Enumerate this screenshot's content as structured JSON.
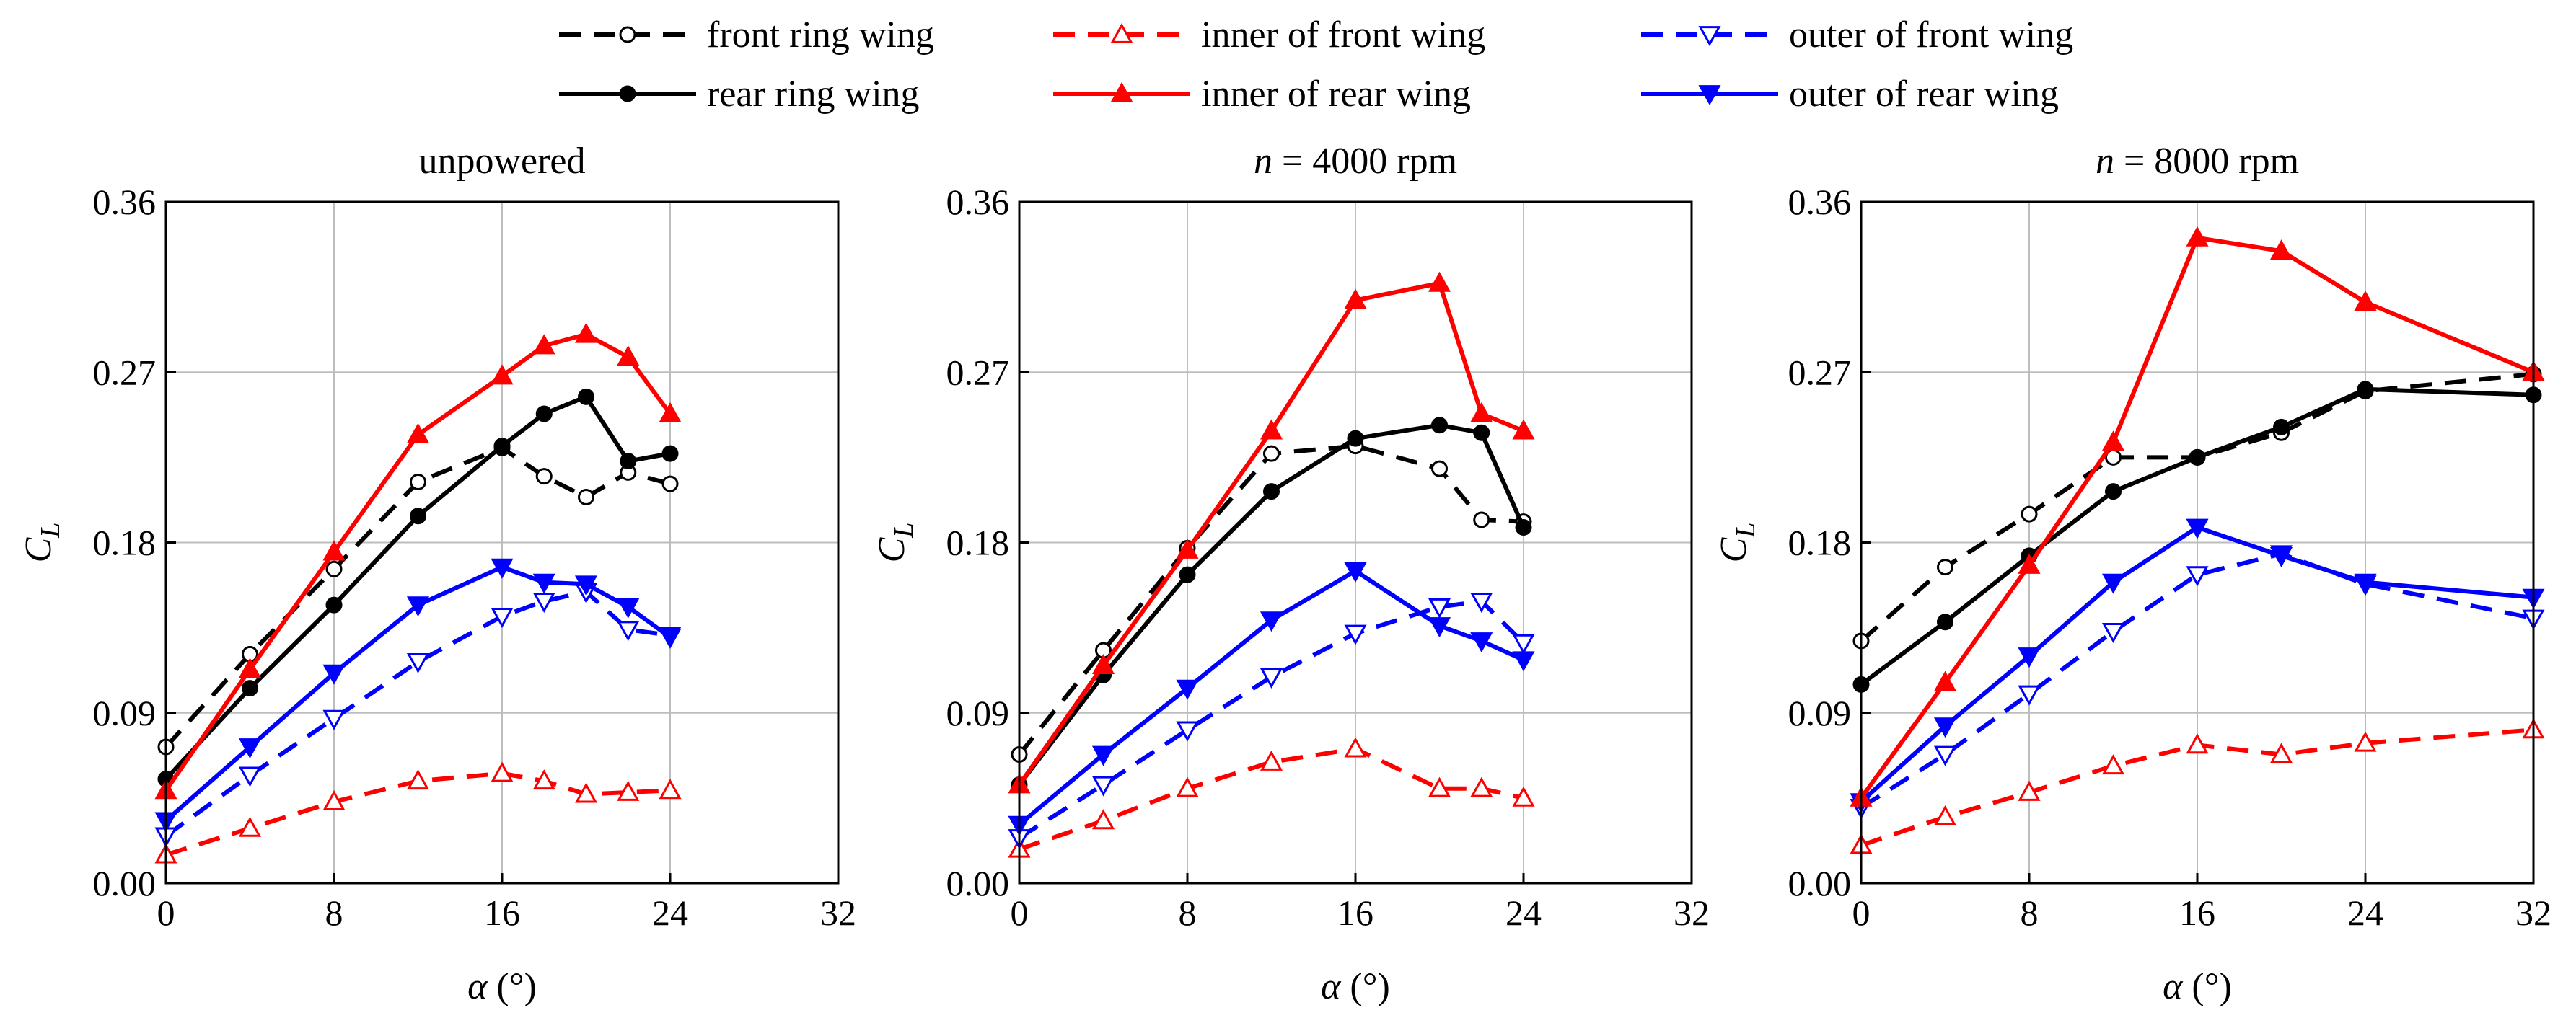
{
  "chart_data": {
    "type": "line",
    "colors": {
      "black": "#000000",
      "red": "#ff0000",
      "blue": "#0000ff"
    },
    "legend": {
      "placement": "top-center",
      "entries": [
        {
          "key": "front",
          "label": "front ring wing",
          "color": "#000000",
          "dashed": true,
          "marker": "circle-open"
        },
        {
          "key": "innerFront",
          "label": "inner of front wing",
          "color": "#ff0000",
          "dashed": true,
          "marker": "triangle-up-open"
        },
        {
          "key": "outerFront",
          "label": "outer of front wing",
          "color": "#0000ff",
          "dashed": true,
          "marker": "triangle-down-open"
        },
        {
          "key": "rear",
          "label": "rear ring wing",
          "color": "#000000",
          "dashed": false,
          "marker": "circle-filled"
        },
        {
          "key": "innerRear",
          "label": "inner of  rear wing",
          "color": "#ff0000",
          "dashed": false,
          "marker": "triangle-up-filled"
        },
        {
          "key": "outerRear",
          "label": "outer of  rear  wing",
          "color": "#0000ff",
          "dashed": false,
          "marker": "triangle-down-filled"
        }
      ]
    },
    "panels": [
      {
        "title_var": "",
        "title_rest": "unpowered",
        "xlabel_var": "α",
        "xlabel_unit": " (°)",
        "ylabel_var": "C",
        "ylabel_sub": "L",
        "xlim": [
          0,
          32
        ],
        "ylim": [
          0,
          0.36
        ],
        "xticks": [
          "0",
          "8",
          "16",
          "24",
          "32"
        ],
        "yticks": [
          "0.00",
          "0.09",
          "0.18",
          "0.27",
          "0.36"
        ],
        "grid": true,
        "series": [
          {
            "key": "front",
            "x": [
              0,
              4,
              8,
              12,
              16,
              18,
              20,
              22,
              24
            ],
            "y": [
              0.072,
              0.121,
              0.166,
              0.212,
              0.23,
              0.215,
              0.204,
              0.217,
              0.211
            ]
          },
          {
            "key": "innerFront",
            "x": [
              0,
              4,
              8,
              12,
              16,
              18,
              20,
              22,
              24
            ],
            "y": [
              0.015,
              0.029,
              0.043,
              0.054,
              0.058,
              0.054,
              0.047,
              0.048,
              0.049
            ]
          },
          {
            "key": "outerFront",
            "x": [
              0,
              4,
              8,
              12,
              16,
              18,
              20,
              22,
              24
            ],
            "y": [
              0.025,
              0.057,
              0.087,
              0.117,
              0.141,
              0.149,
              0.154,
              0.134,
              0.131
            ]
          },
          {
            "key": "rear",
            "x": [
              0,
              4,
              8,
              12,
              16,
              18,
              20,
              22,
              24
            ],
            "y": [
              0.055,
              0.103,
              0.147,
              0.194,
              0.231,
              0.248,
              0.257,
              0.223,
              0.227
            ]
          },
          {
            "key": "innerRear",
            "x": [
              0,
              4,
              8,
              12,
              16,
              18,
              20,
              22,
              24
            ],
            "y": [
              0.049,
              0.113,
              0.175,
              0.237,
              0.268,
              0.284,
              0.29,
              0.278,
              0.248
            ]
          },
          {
            "key": "outerRear",
            "x": [
              0,
              4,
              8,
              12,
              16,
              18,
              20,
              22,
              24
            ],
            "y": [
              0.033,
              0.072,
              0.111,
              0.147,
              0.167,
              0.159,
              0.158,
              0.146,
              0.13
            ]
          }
        ]
      },
      {
        "title_var": "n",
        "title_rest": " = 4000 rpm",
        "xlabel_var": "α",
        "xlabel_unit": " (°)",
        "ylabel_var": "C",
        "ylabel_sub": "L",
        "xlim": [
          0,
          32
        ],
        "ylim": [
          0,
          0.36
        ],
        "xticks": [
          "0",
          "8",
          "16",
          "24",
          "32"
        ],
        "yticks": [
          "0.00",
          "0.09",
          "0.18",
          "0.27",
          "0.36"
        ],
        "grid": true,
        "series": [
          {
            "key": "front",
            "x": [
              0,
              4,
              8,
              12,
              16,
              20,
              22,
              24
            ],
            "y": [
              0.068,
              0.123,
              0.177,
              0.227,
              0.231,
              0.219,
              0.192,
              0.191
            ]
          },
          {
            "key": "innerFront",
            "x": [
              0,
              4,
              8,
              12,
              16,
              20,
              22,
              24
            ],
            "y": [
              0.018,
              0.033,
              0.05,
              0.064,
              0.071,
              0.05,
              0.05,
              0.045
            ]
          },
          {
            "key": "outerFront",
            "x": [
              0,
              4,
              8,
              12,
              16,
              20,
              22,
              24
            ],
            "y": [
              0.024,
              0.052,
              0.081,
              0.109,
              0.132,
              0.146,
              0.149,
              0.127
            ]
          },
          {
            "key": "rear",
            "x": [
              0,
              4,
              8,
              12,
              16,
              20,
              22,
              24
            ],
            "y": [
              0.052,
              0.11,
              0.163,
              0.207,
              0.235,
              0.242,
              0.238,
              0.188
            ]
          },
          {
            "key": "innerRear",
            "x": [
              0,
              4,
              8,
              12,
              16,
              20,
              22,
              24
            ],
            "y": [
              0.052,
              0.115,
              0.176,
              0.239,
              0.308,
              0.317,
              0.248,
              0.239
            ]
          },
          {
            "key": "outerRear",
            "x": [
              0,
              4,
              8,
              12,
              16,
              20,
              22,
              24
            ],
            "y": [
              0.031,
              0.068,
              0.103,
              0.139,
              0.165,
              0.136,
              0.128,
              0.118
            ]
          }
        ]
      },
      {
        "title_var": "n",
        "title_rest": " = 8000 rpm",
        "xlabel_var": "α",
        "xlabel_unit": " (°)",
        "ylabel_var": "C",
        "ylabel_sub": "L",
        "xlim": [
          0,
          32
        ],
        "ylim": [
          0,
          0.36
        ],
        "xticks": [
          "0",
          "8",
          "16",
          "24",
          "32"
        ],
        "yticks": [
          "0.00",
          "0.09",
          "0.18",
          "0.27",
          "0.36"
        ],
        "grid": true,
        "series": [
          {
            "key": "front",
            "x": [
              0,
              4,
              8,
              12,
              16,
              20,
              24,
              32
            ],
            "y": [
              0.128,
              0.167,
              0.195,
              0.225,
              0.225,
              0.238,
              0.26,
              0.269
            ]
          },
          {
            "key": "innerFront",
            "x": [
              0,
              4,
              8,
              12,
              16,
              20,
              24,
              32
            ],
            "y": [
              0.02,
              0.035,
              0.048,
              0.062,
              0.073,
              0.068,
              0.074,
              0.081
            ]
          },
          {
            "key": "outerFront",
            "x": [
              0,
              4,
              8,
              12,
              16,
              20,
              24,
              32
            ],
            "y": [
              0.04,
              0.068,
              0.1,
              0.133,
              0.163,
              0.174,
              0.158,
              0.14
            ]
          },
          {
            "key": "rear",
            "x": [
              0,
              4,
              8,
              12,
              16,
              20,
              24,
              32
            ],
            "y": [
              0.105,
              0.138,
              0.173,
              0.207,
              0.225,
              0.241,
              0.261,
              0.258
            ]
          },
          {
            "key": "innerRear",
            "x": [
              0,
              4,
              8,
              12,
              16,
              20,
              24,
              32
            ],
            "y": [
              0.045,
              0.106,
              0.168,
              0.233,
              0.341,
              0.334,
              0.307,
              0.27
            ]
          },
          {
            "key": "outerRear",
            "x": [
              0,
              4,
              8,
              12,
              16,
              20,
              24,
              32
            ],
            "y": [
              0.043,
              0.083,
              0.12,
              0.159,
              0.188,
              0.173,
              0.159,
              0.151
            ]
          }
        ]
      }
    ]
  }
}
